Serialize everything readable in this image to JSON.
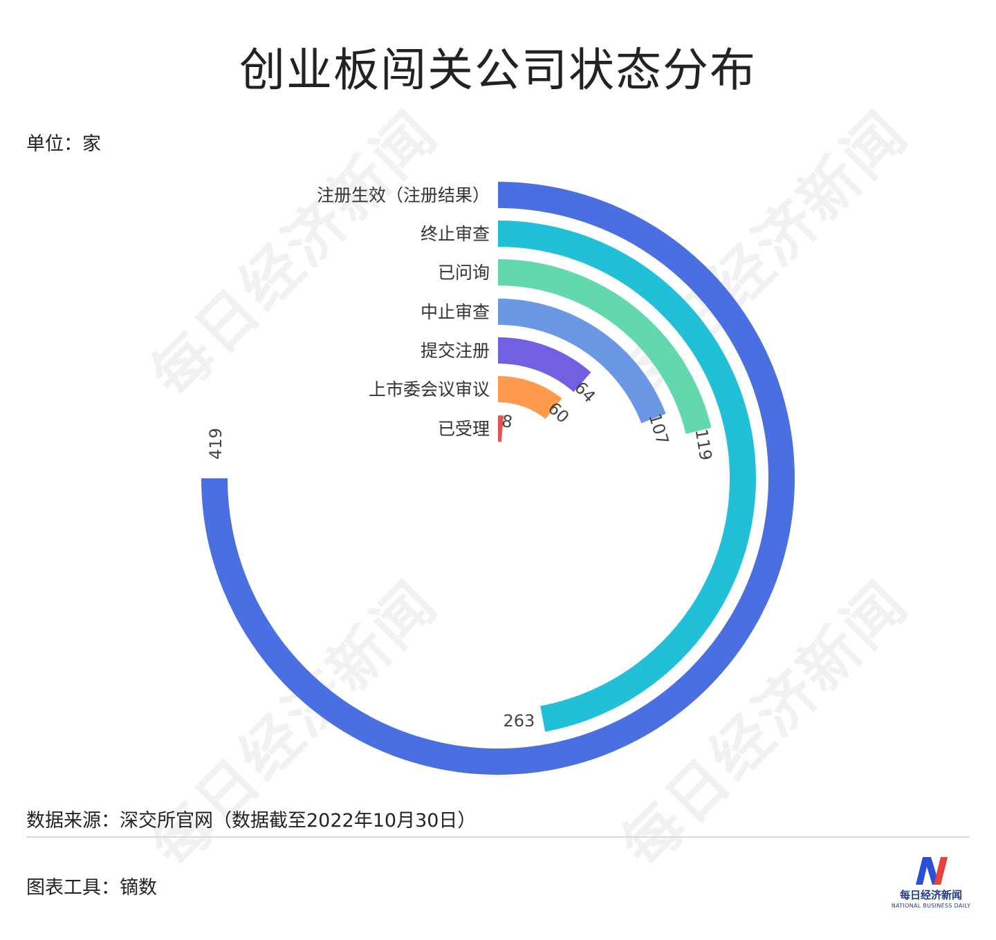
{
  "title": "创业板闯关公司状态分布",
  "unit": "单位：家",
  "watermark": "每日经济新闻",
  "chart_data": {
    "type": "radial-bar",
    "max_value": 419,
    "categories": [
      "注册生效（注册结果）",
      "终止审查",
      "已问询",
      "中止审查",
      "提交注册",
      "上市委会议审议",
      "已受理"
    ],
    "values": [
      419,
      263,
      119,
      107,
      64,
      60,
      8
    ],
    "colors": [
      "#4a6fe0",
      "#21c0d8",
      "#63d8ad",
      "#6b98e4",
      "#7160e2",
      "#ff9a4f",
      "#e55454"
    ]
  },
  "footer": {
    "source": "数据来源：深交所官网（数据截至2022年10月30日）",
    "tool": "图表工具：镝数"
  },
  "logo": {
    "name_cn": "每日经济新闻",
    "name_en": "NATIONAL BUSINESS DAILY"
  }
}
